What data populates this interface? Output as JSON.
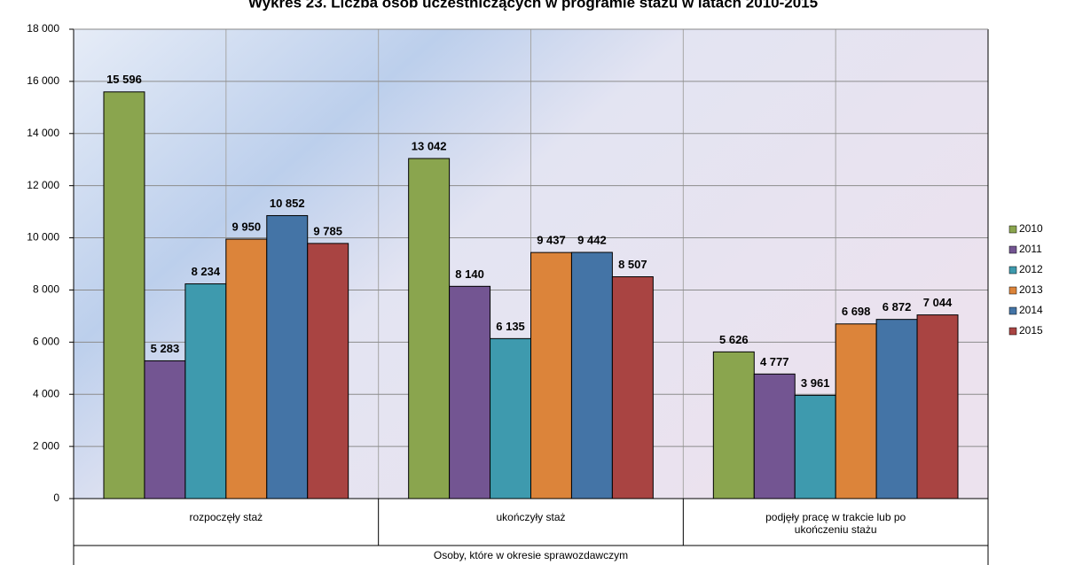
{
  "chart_data": {
    "type": "bar",
    "title": "Wykres 23. Liczba osób uczestniczących w programie stażu w latach 2010-2015",
    "xlabel": "Osoby, które w okresie sprawozdawczym",
    "categories": [
      "rozpoczęły staż",
      "ukończyły staż",
      "podjęły pracę w trakcie lub po ukończeniu stażu"
    ],
    "series": [
      {
        "name": "2010",
        "color": "#8aa54e",
        "values": [
          15596,
          13042,
          5626
        ],
        "value_labels": [
          "15 596",
          "13 042",
          "5 626"
        ]
      },
      {
        "name": "2011",
        "color": "#735592",
        "values": [
          5283,
          8140,
          4777
        ],
        "value_labels": [
          "5 283",
          "8 140",
          "4 777"
        ]
      },
      {
        "name": "2012",
        "color": "#3e9aae",
        "values": [
          8234,
          6135,
          3961
        ],
        "value_labels": [
          "8 234",
          "6 135",
          "3 961"
        ]
      },
      {
        "name": "2013",
        "color": "#dc843a",
        "values": [
          9950,
          9437,
          6698
        ],
        "value_labels": [
          "9 950",
          "9 437",
          "6 698"
        ]
      },
      {
        "name": "2014",
        "color": "#4474a6",
        "values": [
          10852,
          9442,
          6872
        ],
        "value_labels": [
          "10 852",
          "9 442",
          "6 872"
        ]
      },
      {
        "name": "2015",
        "color": "#a94442",
        "values": [
          9785,
          8507,
          7044
        ],
        "value_labels": [
          "9 785",
          "8 507",
          "7 044"
        ]
      }
    ],
    "ylim": [
      0,
      18000
    ],
    "yticks": [
      0,
      {
        "value": 2000,
        "label": "2 000"
      },
      {
        "value": 4000,
        "label": "4 000"
      },
      {
        "value": 6000,
        "label": "6 000"
      },
      {
        "value": 8000,
        "label": "8 000"
      },
      {
        "value": 10000,
        "label": "10 000"
      },
      {
        "value": 12000,
        "label": "12 000"
      },
      {
        "value": 14000,
        "label": "14 000"
      },
      {
        "value": 16000,
        "label": "16 000"
      },
      {
        "value": 18000,
        "label": "18 000"
      }
    ],
    "grid": true,
    "legend": "right"
  }
}
